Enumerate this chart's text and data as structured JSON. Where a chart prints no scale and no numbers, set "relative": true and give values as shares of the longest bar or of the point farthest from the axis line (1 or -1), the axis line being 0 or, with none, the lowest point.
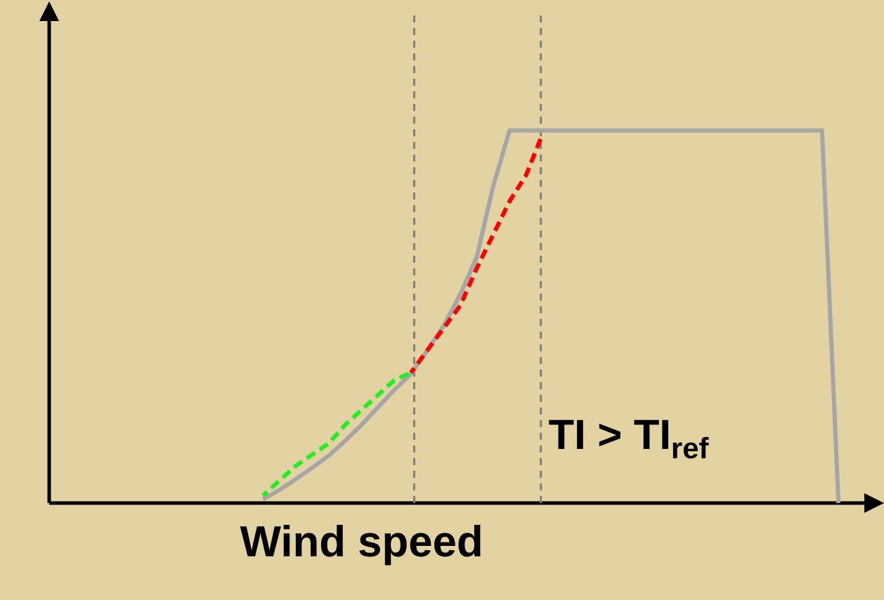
{
  "chart_data": {
    "type": "line",
    "relative": true,
    "xlabel": "Wind speed",
    "marker": "none",
    "annotations": [
      "TI > TI$_{ref}$"
    ],
    "categories": [
      null,
      null,
      null,
      null,
      null,
      null,
      null,
      null,
      null,
      null,
      null,
      null,
      null,
      null,
      null,
      null,
      null,
      null,
      null,
      null,
      null,
      null,
      null,
      null,
      null,
      null,
      null,
      null,
      null,
      null,
      null,
      null,
      null,
      null,
      null,
      null,
      null,
      null,
      null,
      null,
      null,
      null,
      null,
      null,
      null,
      null,
      null,
      null,
      null,
      null,
      null
    ],
    "series": [
      {
        "color": "#a6a6a6",
        "line_style": "solid",
        "values": [
          null,
          null,
          null,
          null,
          null,
          null,
          null,
          null,
          null,
          null,
          null,
          null,
          null,
          0.01,
          0.035,
          0.064,
          0.095,
          0.127,
          0.167,
          0.21,
          0.257,
          0.304,
          0.347,
          0.41,
          0.477,
          0.56,
          0.66,
          0.85,
          1,
          1,
          1,
          1,
          1,
          1,
          1,
          1,
          1,
          1,
          1,
          1,
          1,
          1,
          1,
          1,
          1,
          1,
          1,
          1,
          0,
          null,
          null
        ]
      },
      {
        "color": "#22ee22",
        "line_style": "dashed",
        "values": [
          null,
          null,
          null,
          null,
          null,
          null,
          null,
          null,
          null,
          null,
          null,
          null,
          null,
          0.02,
          0.06,
          0.1,
          0.13,
          0.16,
          0.21,
          0.25,
          0.29,
          0.33,
          0.35,
          null,
          null,
          null,
          null,
          null,
          null,
          null,
          null,
          null,
          null,
          null,
          null,
          null,
          null,
          null,
          null,
          null,
          null,
          null,
          null,
          null,
          null,
          null,
          null,
          null,
          null,
          null,
          null
        ]
      },
      {
        "color": "#ff0000",
        "line_style": "dashed",
        "values": [
          null,
          null,
          null,
          null,
          null,
          null,
          null,
          null,
          null,
          null,
          null,
          null,
          null,
          null,
          null,
          null,
          null,
          null,
          null,
          null,
          null,
          null,
          0.35,
          0.41,
          0.47,
          0.53,
          0.63,
          0.72,
          0.81,
          0.88,
          0.99,
          null,
          null,
          null,
          null,
          null,
          null,
          null,
          null,
          null,
          null,
          null,
          null,
          null,
          null,
          null,
          null,
          null,
          null,
          null,
          null
        ]
      }
    ]
  }
}
